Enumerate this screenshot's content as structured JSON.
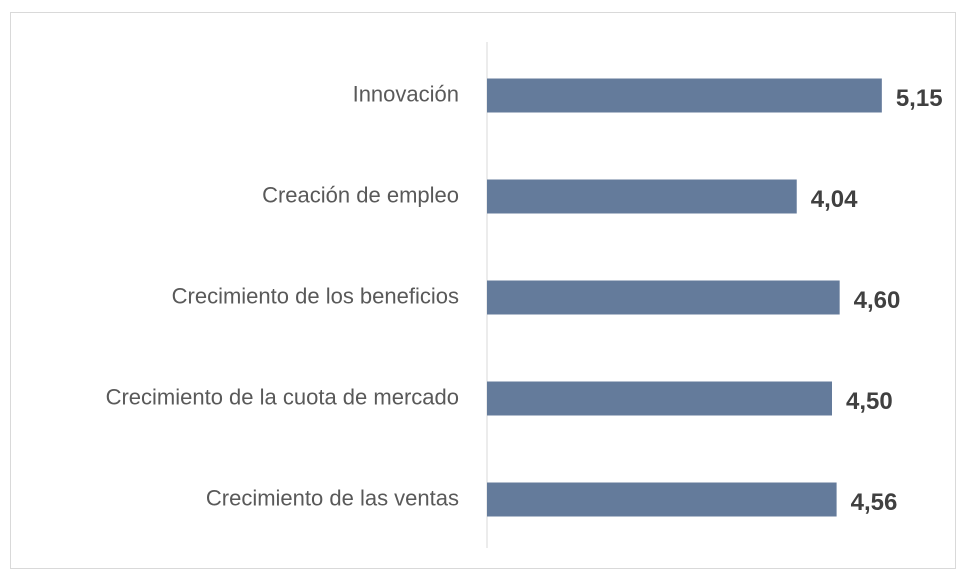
{
  "chart_data": {
    "type": "hbar",
    "categories": [
      "Innovación",
      "Creación de empleo",
      "Crecimiento de los beneficios",
      "Crecimiento de la cuota de mercado",
      "Crecimiento de las ventas"
    ],
    "values": [
      5.15,
      4.04,
      4.6,
      4.5,
      4.56
    ],
    "value_labels": [
      "5,15",
      "4,04",
      "4,60",
      "4,50",
      "4,56"
    ],
    "color": "#647b9b",
    "xlim": [
      0,
      6
    ]
  }
}
